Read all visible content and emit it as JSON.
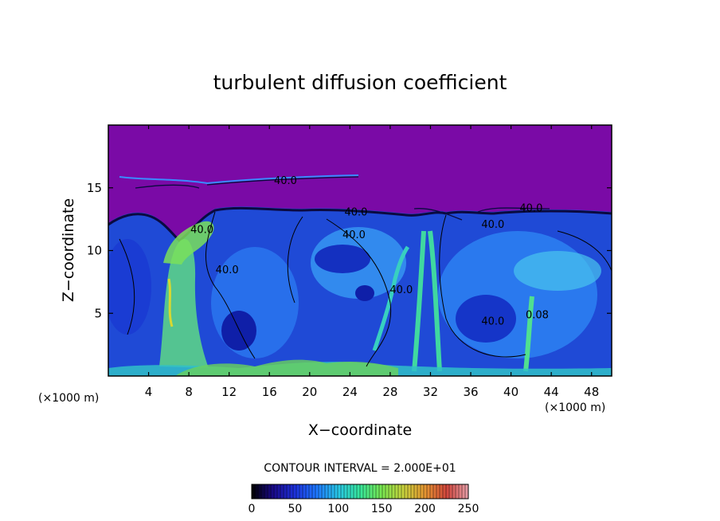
{
  "chart_data": {
    "type": "heatmap",
    "title": "turbulent diffusion coefficient",
    "xlabel": "X−coordinate",
    "ylabel": "Z−coordinate",
    "x_unit_left": "(×1000 m)",
    "x_unit_right": "(×1000 m)",
    "xlim": [
      0,
      50
    ],
    "ylim": [
      0,
      20
    ],
    "x_ticks": [
      4,
      8,
      12,
      16,
      20,
      24,
      28,
      32,
      36,
      40,
      44,
      48
    ],
    "y_ticks": [
      5,
      10,
      15
    ],
    "contour_interval_text": "CONTOUR INTERVAL = 2.000E+01",
    "colorbar": {
      "min": 0,
      "max": 250,
      "ticks": [
        0,
        50,
        100,
        150,
        200,
        250
      ],
      "colors": [
        "#000000",
        "#1a0a8a",
        "#1e32dc",
        "#1e78ff",
        "#28c8e6",
        "#37e69b",
        "#78e650",
        "#c8d23c",
        "#e69632",
        "#d2463c",
        "#e6a0aa"
      ]
    },
    "background_value_color": "#7a0aa6",
    "contour_labels": [
      {
        "text": "40.0",
        "x": 17.6,
        "y": 15.3
      },
      {
        "text": "40.0",
        "x": 24.6,
        "y": 12.8
      },
      {
        "text": "40.0",
        "x": 24.4,
        "y": 11.0
      },
      {
        "text": "40.0",
        "x": 9.3,
        "y": 11.4
      },
      {
        "text": "40.0",
        "x": 11.8,
        "y": 8.2
      },
      {
        "text": "40.0",
        "x": 42.0,
        "y": 13.1
      },
      {
        "text": "40.0",
        "x": 38.2,
        "y": 11.8
      },
      {
        "text": "40.0",
        "x": 38.2,
        "y": 4.1
      },
      {
        "text": "40.0",
        "x": 29.1,
        "y": 6.6
      },
      {
        "text": "0.08",
        "x": 42.6,
        "y": 4.6
      }
    ]
  }
}
